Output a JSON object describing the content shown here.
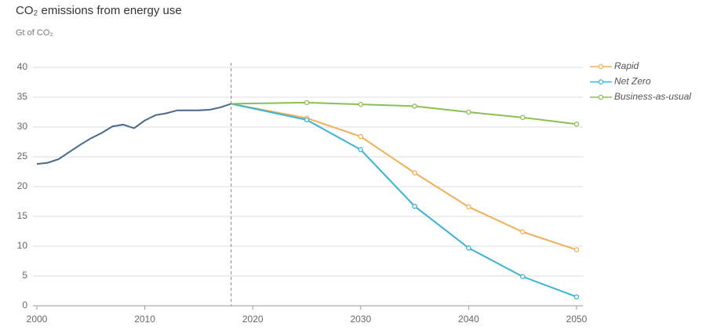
{
  "chart_data": {
    "type": "line",
    "title": "CO₂ emissions from energy use",
    "subtitle": "Gt of CO₂",
    "xlim": [
      2000,
      2050
    ],
    "xticks": [
      2000,
      2010,
      2020,
      2030,
      2040,
      2050
    ],
    "ylim": [
      0,
      40
    ],
    "yticks": [
      0,
      5,
      10,
      15,
      20,
      25,
      30,
      35,
      40
    ],
    "grid": true,
    "legend": "upper right",
    "vline": 2018,
    "series": [
      {
        "color": "#46698c",
        "x": [
          2000,
          2001,
          2002,
          2003,
          2004,
          2005,
          2006,
          2007,
          2008,
          2009,
          2010,
          2011,
          2012,
          2013,
          2014,
          2015,
          2016,
          2017,
          2018
        ],
        "values": [
          23.8,
          24.0,
          24.6,
          25.8,
          27.0,
          28.1,
          29.0,
          30.1,
          30.4,
          29.8,
          31.1,
          32.0,
          32.3,
          32.8,
          32.8,
          32.8,
          32.9,
          33.3,
          33.9
        ]
      },
      {
        "name": "Rapid",
        "color": "#f0b05a",
        "x": [
          2018,
          2025,
          2030,
          2035,
          2040,
          2045,
          2050
        ],
        "values": [
          33.9,
          31.5,
          28.4,
          22.3,
          16.6,
          12.4,
          9.4
        ]
      },
      {
        "name": "Net Zero",
        "color": "#3bb3d6",
        "x": [
          2018,
          2025,
          2030,
          2035,
          2040,
          2045,
          2050
        ],
        "values": [
          33.9,
          31.2,
          26.2,
          16.7,
          9.7,
          4.9,
          1.5
        ]
      },
      {
        "name": "Business-as-usual",
        "color": "#8cc152",
        "x": [
          2018,
          2025,
          2030,
          2035,
          2040,
          2045,
          2050
        ],
        "values": [
          33.9,
          34.1,
          33.8,
          33.5,
          32.5,
          31.6,
          30.5
        ]
      }
    ]
  }
}
